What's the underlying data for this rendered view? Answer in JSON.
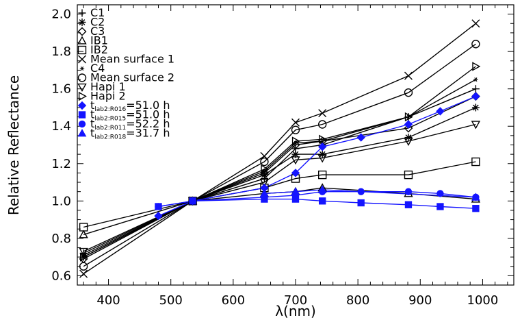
{
  "chart_data": {
    "type": "line",
    "xlabel": "λ(nm)",
    "ylabel": "Relative Reflectance",
    "xlim": [
      350,
      1050
    ],
    "ylim": [
      0.55,
      2.05
    ],
    "x_ticks": [
      400,
      500,
      600,
      700,
      800,
      900,
      1000
    ],
    "y_ticks": [
      0.6,
      0.8,
      1.0,
      1.2,
      1.4,
      1.6,
      1.8,
      2.0
    ],
    "grid": false,
    "legend_position": "top-left",
    "colors": {
      "black": "#000000",
      "blue": "#1414ff"
    },
    "series": [
      {
        "name": "C1",
        "marker": "plus",
        "color": "#000000",
        "x": [
          360,
          535,
          650,
          700,
          743,
          881,
          989
        ],
        "y": [
          0.72,
          1.0,
          1.12,
          1.28,
          1.3,
          1.45,
          1.6
        ]
      },
      {
        "name": "C2",
        "marker": "asterisk",
        "color": "#000000",
        "x": [
          360,
          535,
          650,
          700,
          743,
          881,
          989
        ],
        "y": [
          0.7,
          1.0,
          1.14,
          1.25,
          1.25,
          1.34,
          1.5
        ]
      },
      {
        "name": "C3",
        "marker": "diamond",
        "color": "#000000",
        "x": [
          360,
          535,
          650,
          700,
          743,
          881,
          989
        ],
        "y": [
          0.69,
          1.0,
          1.15,
          1.3,
          1.32,
          1.39,
          1.56
        ]
      },
      {
        "name": "IB1",
        "marker": "triangle",
        "color": "#000000",
        "x": [
          360,
          535,
          650,
          700,
          743,
          881,
          989
        ],
        "y": [
          0.82,
          1.0,
          1.04,
          1.05,
          1.07,
          1.04,
          1.01
        ]
      },
      {
        "name": "IB2",
        "marker": "square",
        "color": "#000000",
        "x": [
          360,
          535,
          650,
          700,
          743,
          881,
          989
        ],
        "y": [
          0.86,
          1.0,
          1.07,
          1.12,
          1.14,
          1.14,
          1.21
        ]
      },
      {
        "name": "Mean surface 1",
        "marker": "x",
        "color": "#000000",
        "x": [
          360,
          535,
          650,
          700,
          743,
          881,
          989
        ],
        "y": [
          0.61,
          1.0,
          1.24,
          1.42,
          1.47,
          1.67,
          1.95
        ]
      },
      {
        "name": "C4",
        "marker": "star",
        "color": "#000000",
        "x": [
          360,
          535,
          650,
          700,
          743,
          881,
          989
        ],
        "y": [
          0.71,
          1.0,
          1.16,
          1.31,
          1.32,
          1.45,
          1.65
        ]
      },
      {
        "name": "Mean surface 2",
        "marker": "circle",
        "color": "#000000",
        "x": [
          360,
          535,
          650,
          700,
          743,
          881,
          989
        ],
        "y": [
          0.65,
          1.0,
          1.21,
          1.38,
          1.41,
          1.58,
          1.84
        ]
      },
      {
        "name": "Hapi 1",
        "marker": "triangle-down",
        "color": "#000000",
        "x": [
          360,
          535,
          650,
          700,
          743,
          881,
          989
        ],
        "y": [
          0.73,
          1.0,
          1.1,
          1.22,
          1.23,
          1.32,
          1.41
        ]
      },
      {
        "name": "Hapi 2",
        "marker": "triangle-right",
        "color": "#000000",
        "x": [
          360,
          535,
          650,
          700,
          743,
          881,
          989
        ],
        "y": [
          0.7,
          1.0,
          1.17,
          1.32,
          1.33,
          1.45,
          1.72
        ]
      },
      {
        "name": "lab2:R016",
        "label_main": "t",
        "label_sub": "lab2:R016",
        "label_rest": "=51.0 h",
        "marker": "diamond-filled",
        "color": "#1414ff",
        "x": [
          480,
          535,
          650,
          700,
          743,
          805,
          881,
          932,
          989
        ],
        "y": [
          0.92,
          1.0,
          1.07,
          1.15,
          1.29,
          1.34,
          1.41,
          1.48,
          1.56
        ]
      },
      {
        "name": "lab2:R015",
        "label_main": "t",
        "label_sub": "lab2:R015",
        "label_rest": "=51.0 h",
        "marker": "square-filled",
        "color": "#1414ff",
        "x": [
          480,
          535,
          650,
          700,
          743,
          805,
          881,
          932,
          989
        ],
        "y": [
          0.97,
          1.0,
          1.01,
          1.01,
          1.0,
          0.99,
          0.98,
          0.97,
          0.96
        ]
      },
      {
        "name": "lab2:R011",
        "label_main": "t",
        "label_sub": "lab2:R011",
        "label_rest": "=52.2 h",
        "marker": "circle-filled",
        "color": "#1414ff",
        "x": [
          480,
          535,
          650,
          700,
          743,
          805,
          881,
          932,
          989
        ],
        "y": [
          0.97,
          1.0,
          1.02,
          1.03,
          1.05,
          1.05,
          1.05,
          1.04,
          1.02
        ]
      },
      {
        "name": "lab2:R018",
        "label_main": "t",
        "label_sub": "lab2:R018",
        "label_rest": "=31.7 h",
        "marker": "triangle-filled",
        "color": "#1414ff",
        "x": [
          650,
          700,
          743,
          989
        ],
        "y": [
          1.04,
          1.05,
          1.06,
          1.02
        ]
      }
    ]
  }
}
